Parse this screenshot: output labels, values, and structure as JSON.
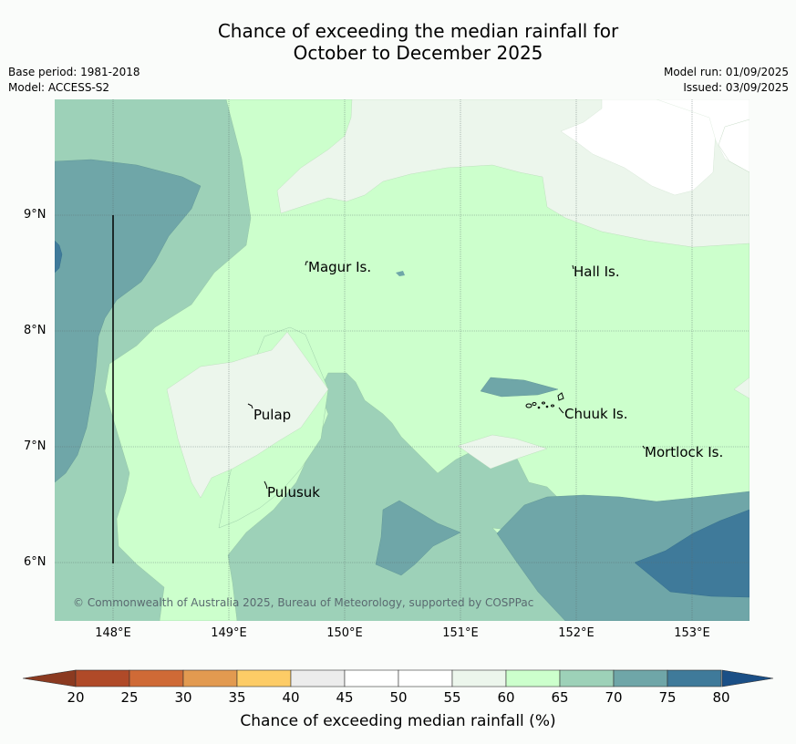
{
  "title_line1": "Chance of exceeding the median rainfall for",
  "title_line2": "October to December 2025",
  "base_period": "Base period: 1981-2018",
  "model": "Model: ACCESS-S2",
  "model_run": "Model run: 01/09/2025",
  "issued": "Issued: 03/09/2025",
  "copyright": "© Commonwealth of Australia 2025, Bureau of Meteorology, supported by COSPPac",
  "lat_labels": [
    "9°N",
    "8°N",
    "7°N",
    "6°N"
  ],
  "lon_labels": [
    "148°E",
    "149°E",
    "150°E",
    "151°E",
    "152°E",
    "153°E"
  ],
  "places": {
    "magur": "Magur Is.",
    "hall": "Hall Is.",
    "pulap": "Pulap",
    "chuuk": "Chuuk Is.",
    "mortlock": "Mortlock Is.",
    "pulusuk": "Pulusuk"
  },
  "colorbar": {
    "ticks": [
      "20",
      "25",
      "30",
      "35",
      "40",
      "45",
      "50",
      "55",
      "60",
      "65",
      "70",
      "75",
      "80"
    ],
    "title": "Chance of exceeding median rainfall (%)",
    "colors": {
      "below_20": "#8b3a20",
      "c20_25": "#b04a28",
      "c25_30": "#cf6a36",
      "c30_35": "#e29a50",
      "c35_40": "#fdcc66",
      "c40_45": "#ececec",
      "c45_50": "#ffffff",
      "c50_55": "#ffffff",
      "c55_60": "#ecf6ec",
      "c60_65": "#ccffcc",
      "c65_70": "#9dd1b8",
      "c70_75": "#6fa6a8",
      "c75_80": "#3f7a9a",
      "above_80": "#1a4f86"
    }
  }
}
